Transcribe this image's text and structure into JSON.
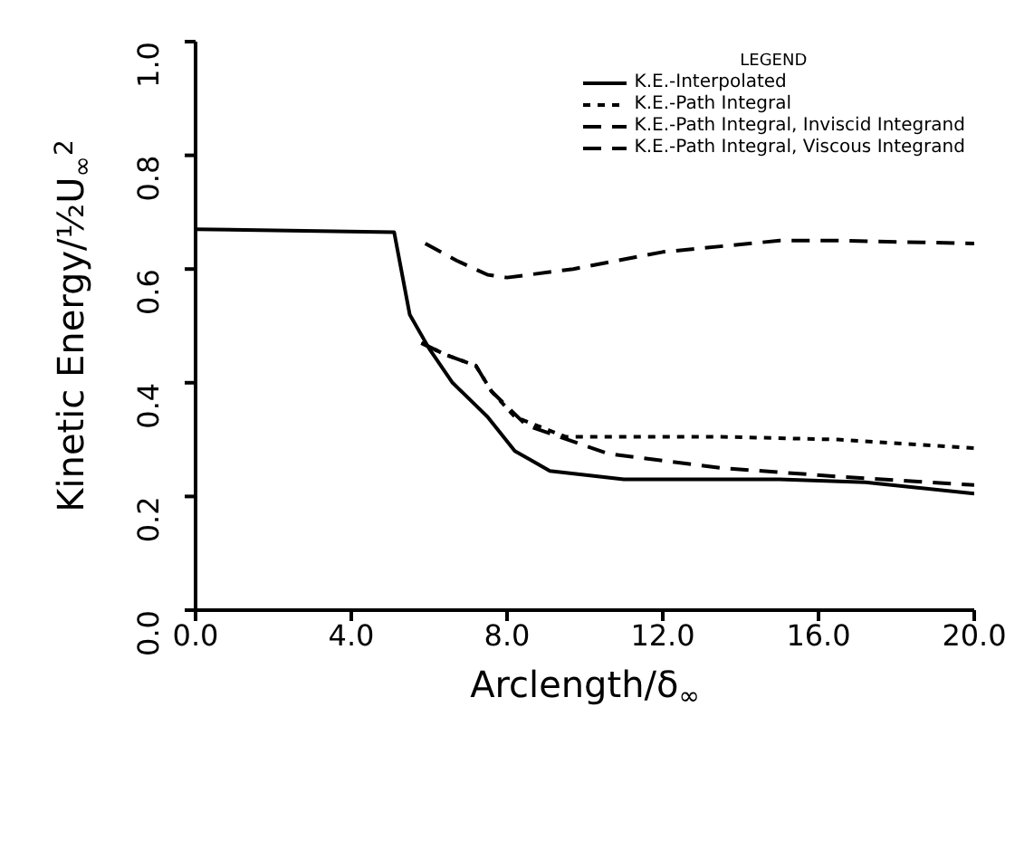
{
  "chart_data": {
    "type": "line",
    "xlabel": "Arclength/δ$_{∞}$",
    "ylabel": "Kinetic Energy/½U$_{∞}$$^{2}$",
    "legend_title": "LEGEND",
    "legend": "top right",
    "grid": false,
    "marker": "none",
    "xlim": [
      0,
      20
    ],
    "xticks": [
      {
        "value": 0,
        "label": "0.0"
      },
      {
        "value": 4,
        "label": "4.0"
      },
      {
        "value": 8,
        "label": "8.0"
      },
      {
        "value": 12,
        "label": "12.0"
      },
      {
        "value": 16,
        "label": "16.0"
      },
      {
        "value": 20,
        "label": "20.0"
      }
    ],
    "ylim": [
      0,
      1
    ],
    "yticks": [
      {
        "value": 0,
        "label": "0.0"
      },
      {
        "value": 0.2,
        "label": "0.2"
      },
      {
        "value": 0.4,
        "label": "0.4"
      },
      {
        "value": 0.6,
        "label": "0.6"
      },
      {
        "value": 0.8,
        "label": "0.8"
      },
      {
        "value": 1,
        "label": "1.0"
      }
    ],
    "series": [
      {
        "name": "K.E.-Interpolated",
        "color": "#000000",
        "line_style": "solid",
        "x": [
          0,
          5.1,
          5.5,
          6.0,
          6.6,
          7.2,
          7.5,
          8.2,
          9.1,
          11.0,
          15.0,
          17.2,
          20.0
        ],
        "values": [
          0.67,
          0.665,
          0.52,
          0.46,
          0.4,
          0.36,
          0.34,
          0.28,
          0.245,
          0.23,
          0.23,
          0.225,
          0.205
        ]
      },
      {
        "name": "K.E.-Path Integral",
        "color": "#000000",
        "line_style": "dotted",
        "x": [
          5.8,
          6.4,
          7.2,
          7.6,
          8.2,
          9.5,
          13.5,
          16.5,
          20.0
        ],
        "values": [
          0.47,
          0.45,
          0.43,
          0.385,
          0.34,
          0.305,
          0.305,
          0.3,
          0.285
        ]
      },
      {
        "name": "K.E.-Path Integral, Inviscid Integrand",
        "color": "#000000",
        "line_style": "dashed",
        "x": [
          5.8,
          6.4,
          7.2,
          7.6,
          8.5,
          10.6,
          13.5,
          16.5,
          20.0
        ],
        "values": [
          0.47,
          0.45,
          0.43,
          0.385,
          0.325,
          0.275,
          0.25,
          0.235,
          0.22
        ]
      },
      {
        "name": "K.E.-Path Integral, Viscous Integrand",
        "color": "#000000",
        "line_style": "dashed",
        "x": [
          5.9,
          6.7,
          7.5,
          8.0,
          9.7,
          12.0,
          15.0,
          16.5,
          20.0
        ],
        "values": [
          0.645,
          0.615,
          0.59,
          0.585,
          0.6,
          0.63,
          0.65,
          0.65,
          0.645
        ]
      }
    ]
  }
}
